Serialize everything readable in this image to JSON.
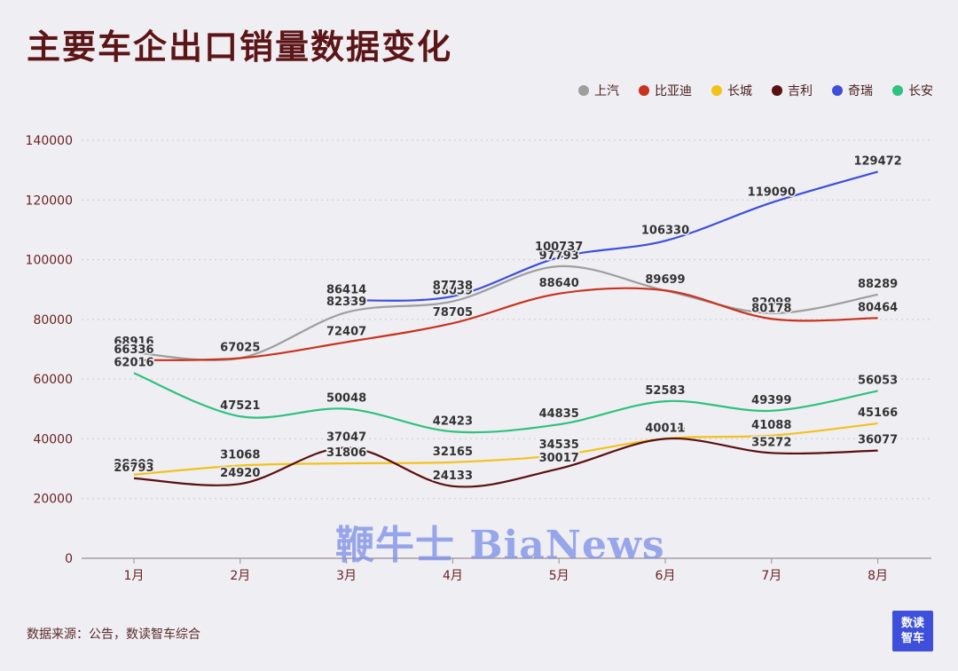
{
  "title": "主要车企出口销量数据变化",
  "source": "数据来源：公告，数读智车综合",
  "watermark": "鞭牛士 BiaNews",
  "logo": {
    "line1": "数读",
    "line2": "智车",
    "color": "#3d4fdb"
  },
  "chart_data": {
    "type": "line",
    "categories": [
      "1月",
      "2月",
      "3月",
      "4月",
      "5月",
      "6月",
      "7月",
      "8月"
    ],
    "ylim": [
      0,
      140000
    ],
    "yticks": [
      0,
      20000,
      40000,
      60000,
      80000,
      100000,
      120000,
      140000
    ],
    "grid": true,
    "legend_position": "top-right",
    "series": [
      {
        "name": "上汽",
        "color": "#9e9e9e",
        "values": [
          68916,
          67025,
          82339,
          86039,
          97793,
          89645,
          82098,
          88289
        ]
      },
      {
        "name": "比亚迪",
        "color": "#c8321e",
        "values": [
          66336,
          67025,
          72407,
          78705,
          88640,
          89699,
          80178,
          80464
        ]
      },
      {
        "name": "长城",
        "color": "#f2c21b",
        "values": [
          28000,
          31068,
          31806,
          32165,
          34535,
          40114,
          41088,
          45166
        ]
      },
      {
        "name": "吉利",
        "color": "#5a1010",
        "values": [
          26793,
          24920,
          37047,
          24133,
          30017,
          40011,
          35272,
          36077
        ]
      },
      {
        "name": "奇瑞",
        "color": "#3d4fdb",
        "values": [
          null,
          null,
          86414,
          87738,
          100737,
          106330,
          119090,
          129472
        ]
      },
      {
        "name": "长安",
        "color": "#2ec27e",
        "values": [
          62016,
          47521,
          50048,
          42423,
          44835,
          52583,
          49399,
          56053
        ]
      }
    ]
  }
}
